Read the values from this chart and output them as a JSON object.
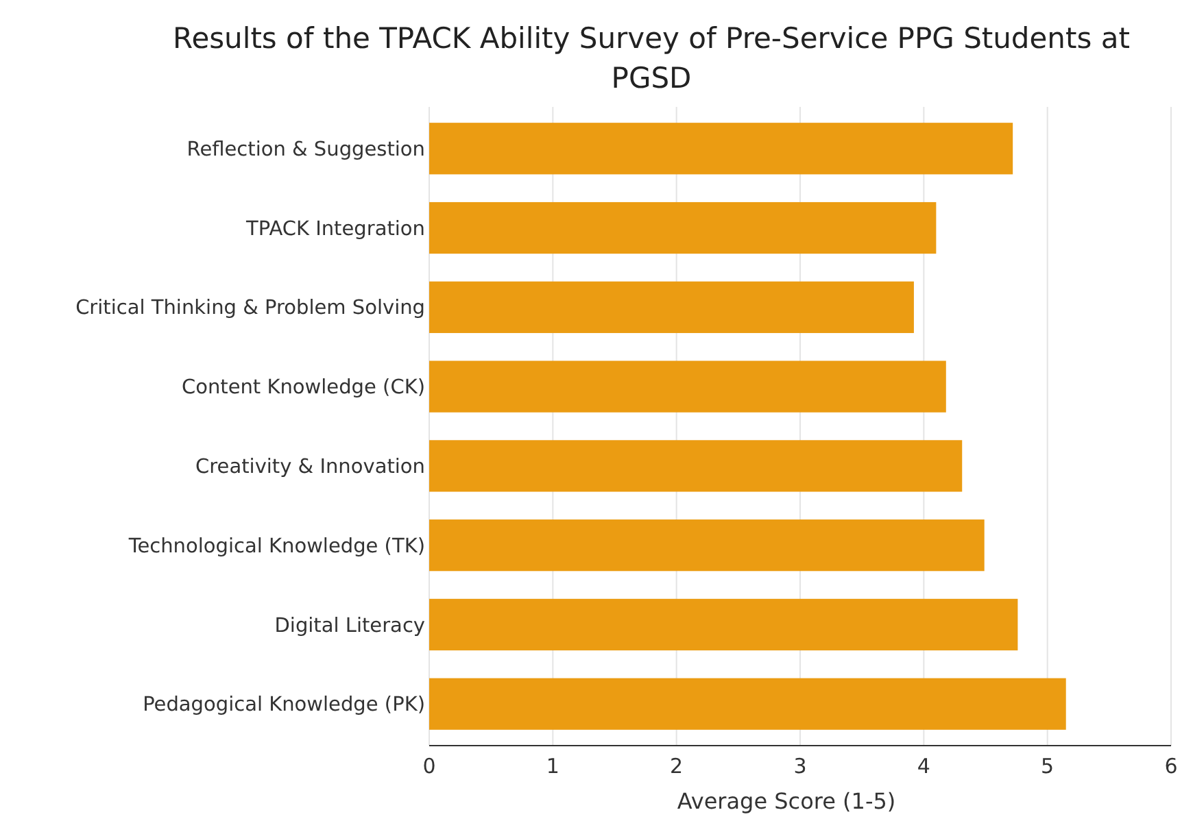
{
  "chart_data": {
    "type": "bar",
    "orientation": "horizontal",
    "title": "Results of the TPACK Ability Survey of Pre-Service PPG Students at PGSD",
    "xlabel": "Average Score (1-5)",
    "categories": [
      "Reflection & Suggestion",
      "TPACK Integration",
      "Critical Thinking & Problem Solving",
      "Content Knowledge (CK)",
      "Creativity & Innovation",
      "Technological Knowledge (TK)",
      "Digital Literacy",
      "Pedagogical Knowledge (PK)"
    ],
    "values": [
      4.72,
      4.1,
      3.92,
      4.18,
      4.31,
      4.49,
      4.76,
      5.15
    ],
    "color": "#eb9c12",
    "xlim": [
      0,
      6
    ],
    "xticks": [
      0,
      1,
      2,
      3,
      4,
      5,
      6
    ],
    "grid": "x"
  }
}
